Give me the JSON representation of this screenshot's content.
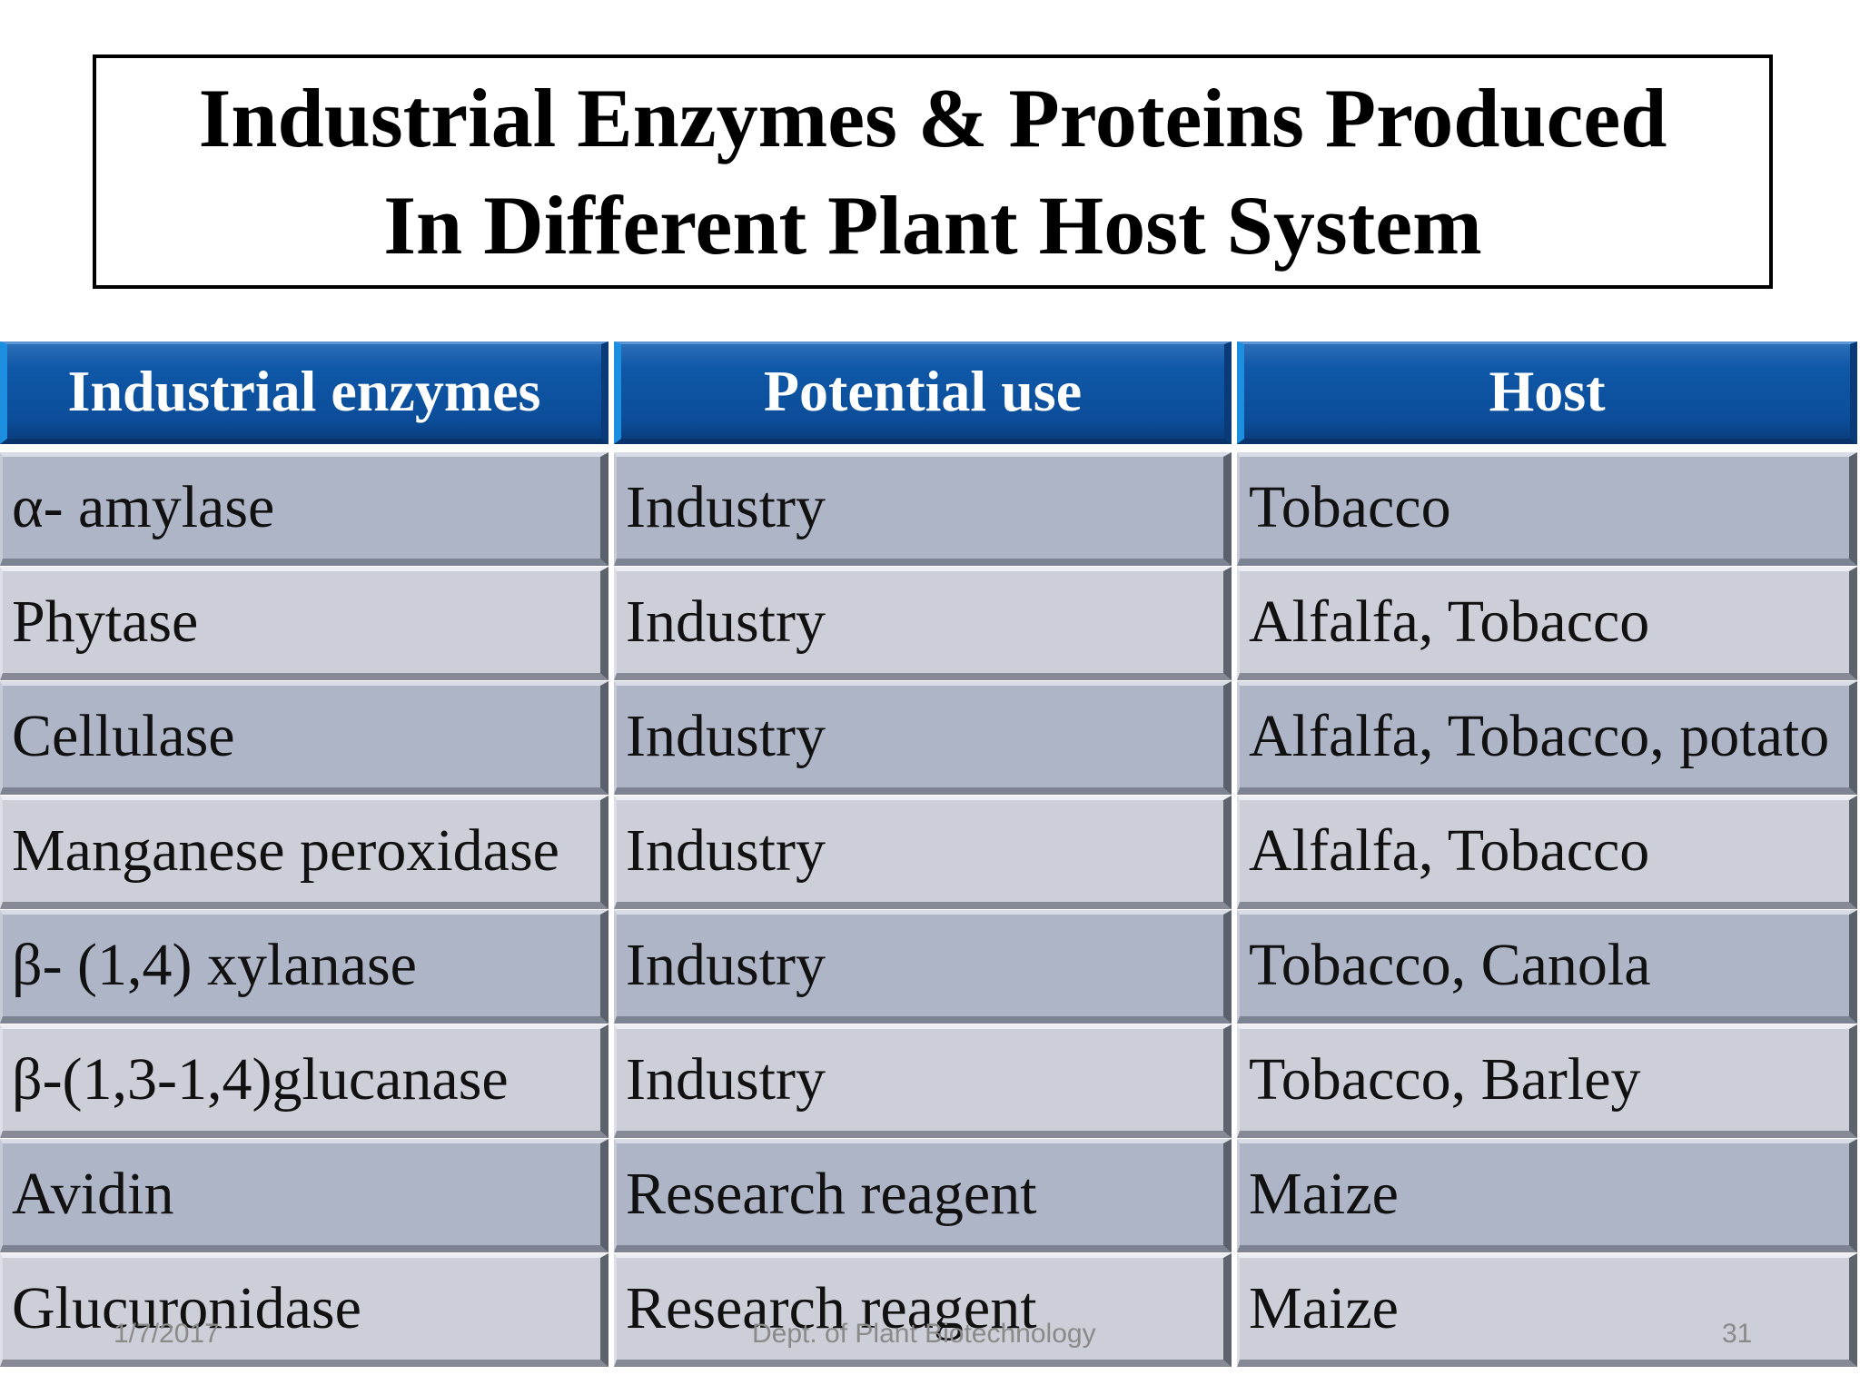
{
  "title": {
    "line1": "Industrial Enzymes & Proteins Produced",
    "line2": "In Different Plant Host System"
  },
  "table": {
    "headers": [
      "Industrial enzymes",
      "Potential use",
      "Host"
    ],
    "rows": [
      [
        "α- amylase",
        "Industry",
        "Tobacco"
      ],
      [
        "Phytase",
        "Industry",
        "Alfalfa, Tobacco"
      ],
      [
        "Cellulase",
        "Industry",
        "Alfalfa, Tobacco, potato"
      ],
      [
        "Manganese peroxidase",
        "Industry",
        "Alfalfa, Tobacco"
      ],
      [
        "β- (1,4) xylanase",
        "Industry",
        "Tobacco, Canola"
      ],
      [
        "β-(1,3-1,4)glucanase",
        "Industry",
        "Tobacco, Barley"
      ],
      [
        "Avidin",
        "Research reagent",
        "Maize"
      ],
      [
        "Glucuronidase",
        "Research reagent",
        "Maize"
      ]
    ]
  },
  "footer": {
    "date": "1/7/2017",
    "department": "Dept. of Plant Biotechnology",
    "page_number": "31"
  },
  "colors": {
    "header_blue": "#0f58a8",
    "row_dark": "#aeb5c7",
    "row_light": "#ccced8"
  }
}
